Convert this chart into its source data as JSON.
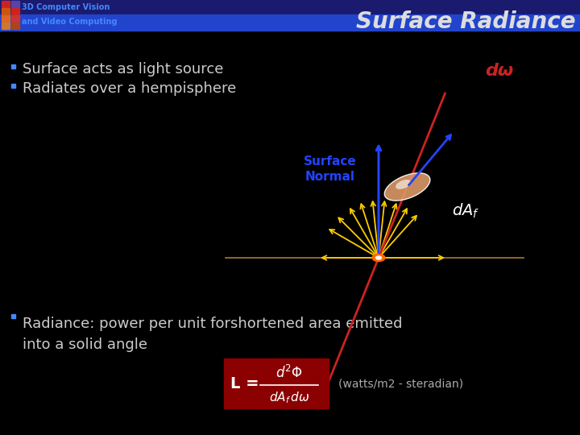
{
  "bg_color": "#000000",
  "header_bar1_color": "#1a1a6e",
  "header_bar2_color": "#2244cc",
  "title_text": "Surface Radiance",
  "title_color": "#dddddd",
  "title_fontsize": 20,
  "header_label1": "3D Computer Vision",
  "header_label2": "and Video Computing",
  "header_text_color": "#4488ff",
  "bullet_color": "#4488ff",
  "bullet1": "Surface acts as light source",
  "bullet2": "Radiates over a hempisphere",
  "bullet3": "Radiance: power per unit forshortened area emitted\ninto a solid angle",
  "bullet_fontsize": 13,
  "dw_label": "dω",
  "dAf_label": "dAⁱ",
  "surface_normal_label": "Surface\nNormal",
  "formula_bg": "#8b0000",
  "formula_units": "(watts/m2 - steradian)",
  "accent_red": "#cc2222",
  "accent_blue": "#2244ff",
  "accent_yellow": "#ffcc00",
  "accent_orange": "#ff6600",
  "sq1_colors": [
    "#cc2222",
    "#5544aa",
    "#cc5511",
    "#cc2222"
  ],
  "sq2_colors": [
    "#dd6622",
    "#cc3333",
    "#cc7733",
    "#aa4422"
  ]
}
